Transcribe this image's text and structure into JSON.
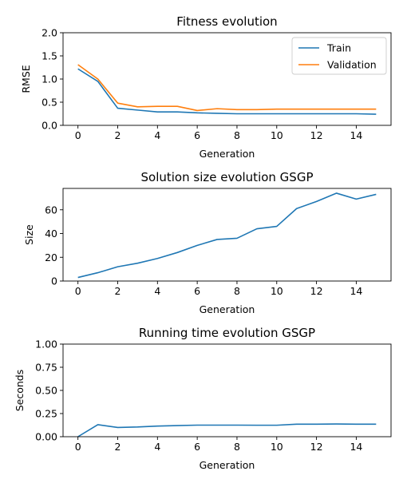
{
  "chart_data": [
    {
      "type": "line",
      "title": "Fitness evolution",
      "xlabel": "Generation",
      "ylabel": "RMSE",
      "xlim": [
        -0.75,
        15.75
      ],
      "ylim": [
        0,
        2.0
      ],
      "xticks": [
        0,
        2,
        4,
        6,
        8,
        10,
        12,
        14
      ],
      "yticks": [
        0.0,
        0.5,
        1.0,
        1.5,
        2.0
      ],
      "ytick_labels": [
        "0.0",
        "0.5",
        "1.0",
        "1.5",
        "2.0"
      ],
      "legend": "top-right",
      "series": [
        {
          "name": "Train",
          "color": "#1f77b4",
          "x": [
            0,
            1,
            2,
            3,
            4,
            5,
            6,
            7,
            8,
            9,
            10,
            11,
            12,
            13,
            14,
            15
          ],
          "values": [
            1.22,
            0.95,
            0.37,
            0.33,
            0.29,
            0.29,
            0.27,
            0.26,
            0.25,
            0.25,
            0.25,
            0.25,
            0.25,
            0.25,
            0.25,
            0.24
          ]
        },
        {
          "name": "Validation",
          "color": "#ff7f0e",
          "x": [
            0,
            1,
            2,
            3,
            4,
            5,
            6,
            7,
            8,
            9,
            10,
            11,
            12,
            13,
            14,
            15
          ],
          "values": [
            1.31,
            1.0,
            0.48,
            0.4,
            0.41,
            0.41,
            0.32,
            0.36,
            0.34,
            0.34,
            0.35,
            0.35,
            0.35,
            0.35,
            0.35,
            0.35
          ]
        }
      ]
    },
    {
      "type": "line",
      "title": "Solution size evolution GSGP",
      "xlabel": "Generation",
      "ylabel": "Size",
      "xlim": [
        -0.75,
        15.75
      ],
      "ylim": [
        0,
        78
      ],
      "xticks": [
        0,
        2,
        4,
        6,
        8,
        10,
        12,
        14
      ],
      "yticks": [
        0,
        20,
        40,
        60
      ],
      "ytick_labels": [
        "0",
        "20",
        "40",
        "60"
      ],
      "series": [
        {
          "name": "Size",
          "color": "#1f77b4",
          "x": [
            0,
            1,
            2,
            3,
            4,
            5,
            6,
            7,
            8,
            9,
            10,
            11,
            12,
            13,
            14,
            15
          ],
          "values": [
            3,
            7,
            12,
            15,
            19,
            24,
            30,
            35,
            36,
            44,
            46,
            61,
            67,
            74,
            69,
            73
          ]
        }
      ]
    },
    {
      "type": "line",
      "title": "Running time evolution GSGP",
      "xlabel": "Generation",
      "ylabel": "Seconds",
      "xlim": [
        -0.75,
        15.75
      ],
      "ylim": [
        0,
        1.0
      ],
      "xticks": [
        0,
        2,
        4,
        6,
        8,
        10,
        12,
        14
      ],
      "yticks": [
        0.0,
        0.25,
        0.5,
        0.75,
        1.0
      ],
      "ytick_labels": [
        "0.00",
        "0.25",
        "0.50",
        "0.75",
        "1.00"
      ],
      "series": [
        {
          "name": "Seconds",
          "color": "#1f77b4",
          "x": [
            0,
            1,
            2,
            3,
            4,
            5,
            6,
            7,
            8,
            9,
            10,
            11,
            12,
            13,
            14,
            15
          ],
          "values": [
            0.0,
            0.13,
            0.1,
            0.105,
            0.115,
            0.12,
            0.125,
            0.125,
            0.125,
            0.124,
            0.124,
            0.135,
            0.135,
            0.137,
            0.135,
            0.135
          ]
        }
      ]
    }
  ]
}
